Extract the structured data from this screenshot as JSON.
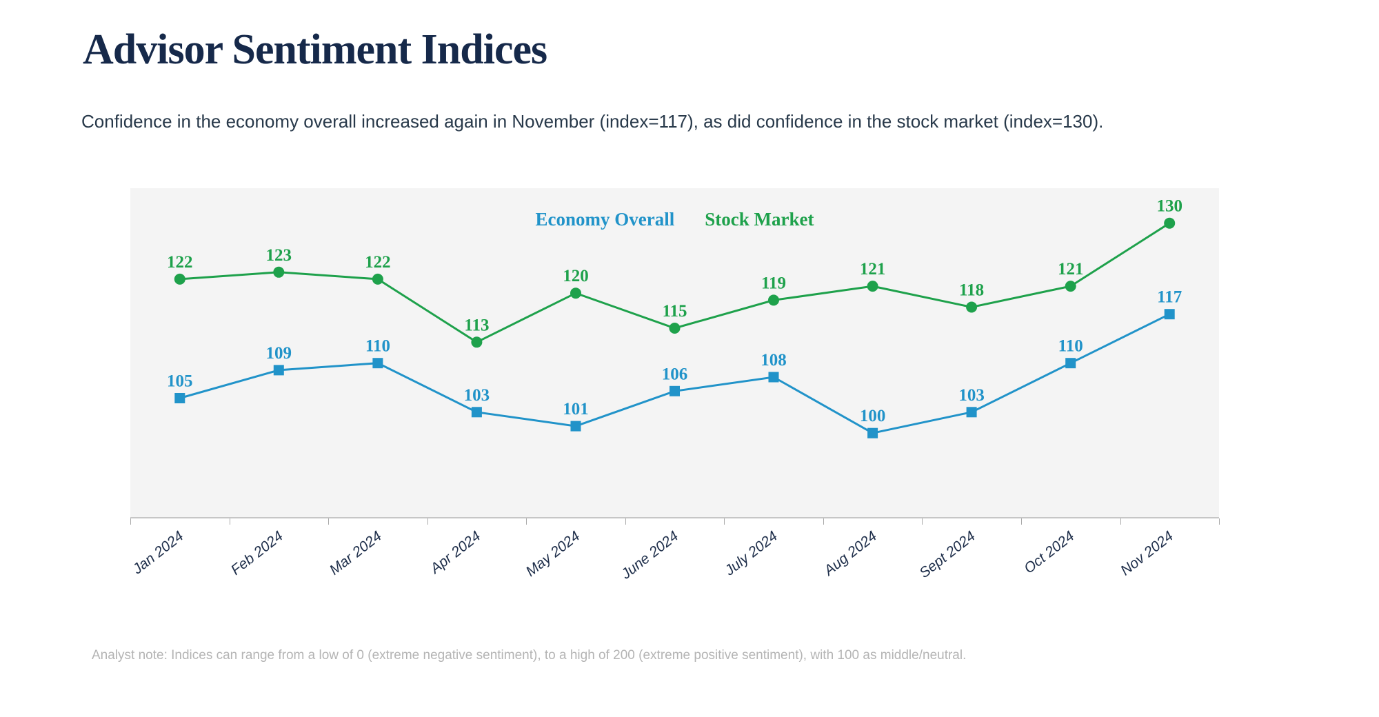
{
  "page": {
    "title": "Advisor Sentiment Indices",
    "subtitle": "Confidence in the economy overall increased again in November (index=117), as did confidence in the stock market (index=130).",
    "note": "Analyst note: Indices can range from a low of 0 (extreme negative sentiment), to a high of 200 (extreme positive sentiment), with 100 as middle/neutral."
  },
  "chart_data": {
    "type": "line",
    "title": "",
    "xlabel": "",
    "ylabel": "",
    "categories": [
      "Jan 2024",
      "Feb 2024",
      "Mar 2024",
      "Apr 2024",
      "May 2024",
      "June 2024",
      "July 2024",
      "Aug 2024",
      "Sept 2024",
      "Oct 2024",
      "Nov 2024"
    ],
    "series": [
      {
        "name": "Economy Overall",
        "color": "#2193c9",
        "marker": "square",
        "values": [
          105,
          109,
          110,
          103,
          101,
          106,
          108,
          100,
          103,
          110,
          117
        ]
      },
      {
        "name": "Stock Market",
        "color": "#1ea14b",
        "marker": "circle",
        "values": [
          122,
          123,
          122,
          113,
          120,
          115,
          119,
          121,
          118,
          121,
          130
        ]
      }
    ],
    "ylim": [
      88,
      135
    ],
    "grid": false,
    "y_axis_labels_visible": false,
    "legend_position": "top-center",
    "plot_background": "#f4f4f4",
    "data_labels": true
  }
}
